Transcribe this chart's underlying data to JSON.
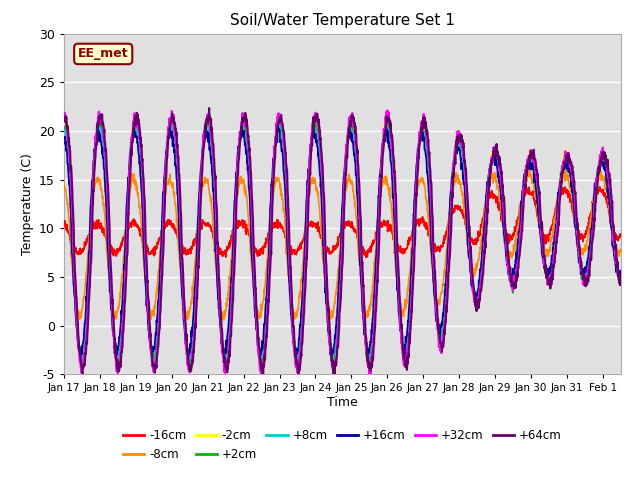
{
  "title": "Soil/Water Temperature Set 1",
  "xlabel": "Time",
  "ylabel": "Temperature (C)",
  "ylim": [
    -5,
    30
  ],
  "xlim": [
    0,
    15.5
  ],
  "background_color": "#ffffff",
  "plot_bg_color": "#e0e0e0",
  "grid_color": "#ffffff",
  "annotation_text": "EE_met",
  "annotation_bg": "#ffffcc",
  "annotation_border": "#8b0000",
  "series_order": [
    "-16cm",
    "-8cm",
    "-2cm",
    "+2cm",
    "+8cm",
    "+16cm",
    "+32cm",
    "+64cm"
  ],
  "series": {
    "-16cm": {
      "color": "#ff0000",
      "lw": 1.2
    },
    "-8cm": {
      "color": "#ff8c00",
      "lw": 1.2
    },
    "-2cm": {
      "color": "#ffff00",
      "lw": 1.2
    },
    "+2cm": {
      "color": "#00bb00",
      "lw": 1.2
    },
    "+8cm": {
      "color": "#00cccc",
      "lw": 1.2
    },
    "+16cm": {
      "color": "#000099",
      "lw": 1.2
    },
    "+32cm": {
      "color": "#ff00ff",
      "lw": 1.5
    },
    "+64cm": {
      "color": "#660066",
      "lw": 1.5
    }
  },
  "xtick_labels": [
    "Jan 17",
    "Jan 18",
    "Jan 19",
    "Jan 20",
    "Jan 21",
    "Jan 22",
    "Jan 23",
    "Jan 24",
    "Jan 25",
    "Jan 26",
    "Jan 27",
    "Jan 28",
    "Jan 29",
    "Jan 30",
    "Jan 31",
    "Feb 1"
  ],
  "ytick_vals": [
    -5,
    0,
    5,
    10,
    15,
    20,
    25,
    30
  ],
  "legend_row1": [
    "-16cm",
    "-8cm",
    "-2cm",
    "+2cm",
    "+8cm",
    "+16cm"
  ],
  "legend_row2": [
    "+32cm",
    "+64cm"
  ]
}
